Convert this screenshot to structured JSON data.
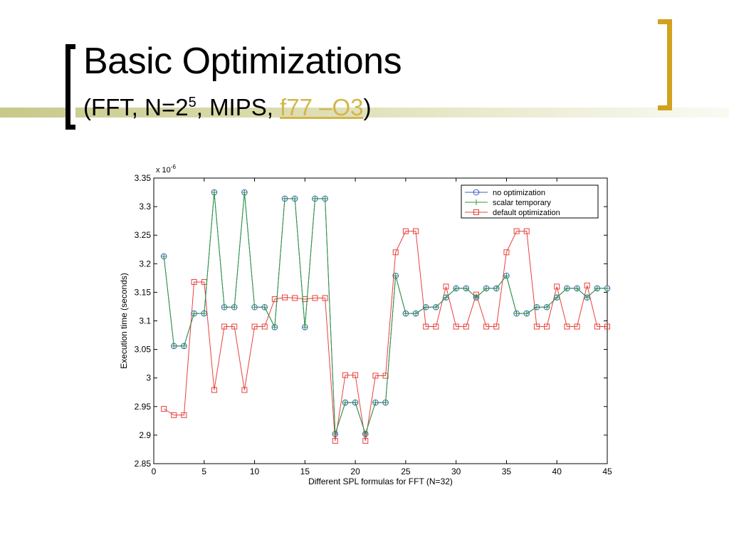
{
  "slide": {
    "title": "Basic Optimizations",
    "subtitle_prefix": "(FFT, N=2",
    "subtitle_exp": "5",
    "subtitle_mid": ", MIPS,  ",
    "subtitle_link": "f77 –O3",
    "subtitle_suffix": ")",
    "accent_color": "#d1a21e",
    "bar_color": "#c7c98a"
  },
  "chart_data": {
    "type": "line",
    "xlabel": "Different SPL formulas for FFT (N=32)",
    "ylabel": "Execution time (seconds)",
    "y_multiplier_base": "x 10",
    "y_multiplier_exp": "-6",
    "xlim": [
      0,
      45
    ],
    "ylim": [
      2.85,
      3.35
    ],
    "xticks": [
      0,
      5,
      10,
      15,
      20,
      25,
      30,
      35,
      40,
      45
    ],
    "yticks": [
      2.85,
      2.9,
      2.95,
      3,
      3.05,
      3.1,
      3.15,
      3.2,
      3.25,
      3.3,
      3.35
    ],
    "ytick_labels": [
      "2.85",
      "2.9",
      "2.95",
      "3",
      "3.05",
      "3.1",
      "3.15",
      "3.2",
      "3.25",
      "3.3",
      "3.35"
    ],
    "grid": false,
    "legend_position": "top-right",
    "x": [
      1,
      2,
      3,
      4,
      5,
      6,
      7,
      8,
      9,
      10,
      11,
      12,
      13,
      14,
      15,
      16,
      17,
      18,
      19,
      20,
      21,
      22,
      23,
      24,
      25,
      26,
      27,
      28,
      29,
      30,
      31,
      32,
      33,
      34,
      35,
      36,
      37,
      38,
      39,
      40,
      41,
      42,
      43,
      44,
      45
    ],
    "series": [
      {
        "name": "no optimization",
        "color": "#3b5cc4",
        "marker": "circle",
        "values": [
          3.213,
          3.056,
          3.056,
          3.113,
          3.113,
          3.325,
          3.124,
          3.124,
          3.325,
          3.124,
          3.124,
          3.089,
          3.314,
          3.314,
          3.089,
          3.314,
          3.314,
          2.902,
          2.957,
          2.957,
          2.902,
          2.957,
          2.957,
          3.179,
          3.113,
          3.113,
          3.124,
          3.124,
          3.141,
          3.157,
          3.157,
          3.141,
          3.157,
          3.157,
          3.179,
          3.113,
          3.113,
          3.124,
          3.124,
          3.141,
          3.157,
          3.157,
          3.141,
          3.157,
          3.157
        ]
      },
      {
        "name": "scalar temporary",
        "color": "#2e9a3a",
        "marker": "plus",
        "values": [
          3.213,
          3.056,
          3.056,
          3.113,
          3.113,
          3.325,
          3.124,
          3.124,
          3.325,
          3.124,
          3.124,
          3.089,
          3.314,
          3.314,
          3.089,
          3.314,
          3.314,
          2.902,
          2.957,
          2.957,
          2.902,
          2.957,
          2.957,
          3.179,
          3.113,
          3.113,
          3.124,
          3.124,
          3.141,
          3.157,
          3.157,
          3.141,
          3.157,
          3.157,
          3.179,
          3.113,
          3.113,
          3.124,
          3.124,
          3.141,
          3.157,
          3.157,
          3.141,
          3.157,
          3.157
        ]
      },
      {
        "name": "default optimization",
        "color": "#e8413c",
        "marker": "square",
        "values": [
          2.946,
          2.935,
          2.935,
          3.168,
          3.168,
          2.979,
          3.09,
          3.09,
          2.979,
          3.09,
          3.09,
          3.138,
          3.141,
          3.14,
          3.138,
          3.14,
          3.14,
          2.89,
          3.005,
          3.005,
          2.89,
          3.004,
          3.004,
          3.22,
          3.257,
          3.257,
          3.09,
          3.09,
          3.16,
          3.09,
          3.09,
          3.146,
          3.09,
          3.09,
          3.22,
          3.257,
          3.257,
          3.09,
          3.09,
          3.16,
          3.09,
          3.09,
          3.162,
          3.09,
          3.09
        ]
      }
    ]
  }
}
